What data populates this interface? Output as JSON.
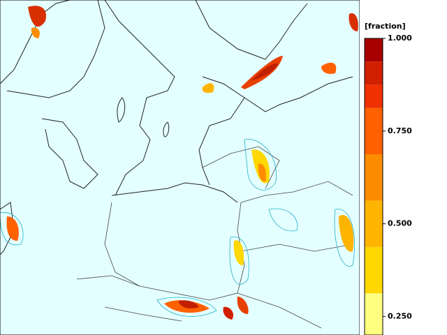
{
  "colorbar": {
    "title": "[fraction]",
    "lim": [
      0.2,
      1
    ],
    "ticks": [
      {
        "value": 1,
        "label": "1.000"
      },
      {
        "value": 0.75,
        "label": "0.750"
      },
      {
        "value": 0.5,
        "label": "0.500"
      },
      {
        "value": 0.25,
        "label": "0.250"
      }
    ],
    "bands": [
      {
        "from": 0.2,
        "to": 0.3125,
        "color": "#ffff80"
      },
      {
        "from": 0.3125,
        "to": 0.4375,
        "color": "#ffd800"
      },
      {
        "from": 0.4375,
        "to": 0.5625,
        "color": "#ffb400"
      },
      {
        "from": 0.5625,
        "to": 0.6875,
        "color": "#ff8c00"
      },
      {
        "from": 0.6875,
        "to": 0.8125,
        "color": "#ff6000"
      },
      {
        "from": 0.8125,
        "to": 0.875,
        "color": "#f03000"
      },
      {
        "from": 0.875,
        "to": 0.9375,
        "color": "#d02000"
      },
      {
        "from": 0.9375,
        "to": 1,
        "color": "#a80000"
      }
    ]
  }
}
